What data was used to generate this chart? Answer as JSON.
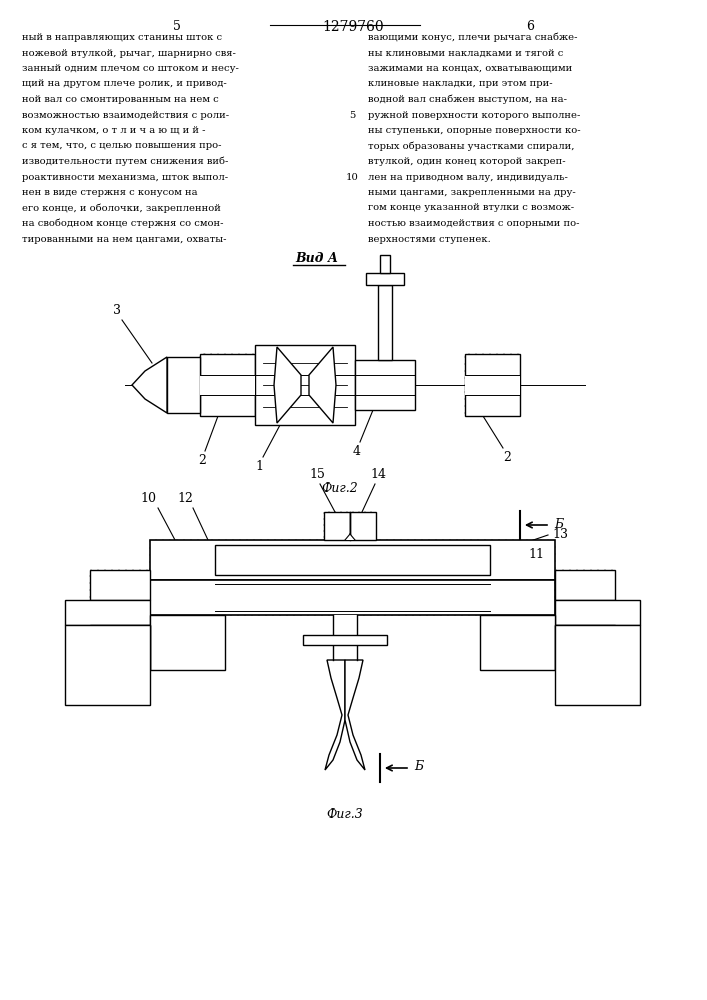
{
  "page_number_left": "5",
  "page_number_center": "1279760",
  "page_number_right": "6",
  "text_left": [
    "ный в направляющих станины шток с",
    "ножевой втулкой, рычаг, шарнирно свя-",
    "занный одним плечом со штоком и несу-",
    "щий на другом плече ролик, и привод-",
    "ной вал со смонтированным на нем с",
    "возможностью взаимодействия с роли-",
    "ком кулачком, о т л и ч а ю щ и й -",
    "с я тем, что, с целью повышения про-",
    "изводительности путем снижения виб-",
    "роактивности механизма, шток выпол-",
    "нен в виде стержня с конусом на",
    "его конце, и оболочки, закрепленной",
    "на свободном конце стержня со смон-",
    "тированными на нем цангами, охваты-"
  ],
  "line_number_5": "5",
  "line_number_10": "10",
  "text_right": [
    "вающими конус, плечи рычага снабже-",
    "ны клиновыми накладками и тягой с",
    "зажимами на концах, охватывающими",
    "клиновые накладки, при этом при-",
    "водной вал снабжен выступом, на на-",
    "ружной поверхности которого выполне-",
    "ны ступеньки, опорные поверхности ко-",
    "торых образованы участками спирали,",
    "втулкой, один конец которой закреп-",
    "лен на приводном валу, индивидуаль-",
    "ными цангами, закрепленными на дру-",
    "гом конце указанной втулки с возмож-",
    "ностью взаимодействия с опорными по-",
    "верхностями ступенек."
  ],
  "fig2_label": "Вид А",
  "fig2_caption": "Фиг.2",
  "fig3_caption": "Фиг.3",
  "bg_color": "#ffffff",
  "line_color": "#000000"
}
